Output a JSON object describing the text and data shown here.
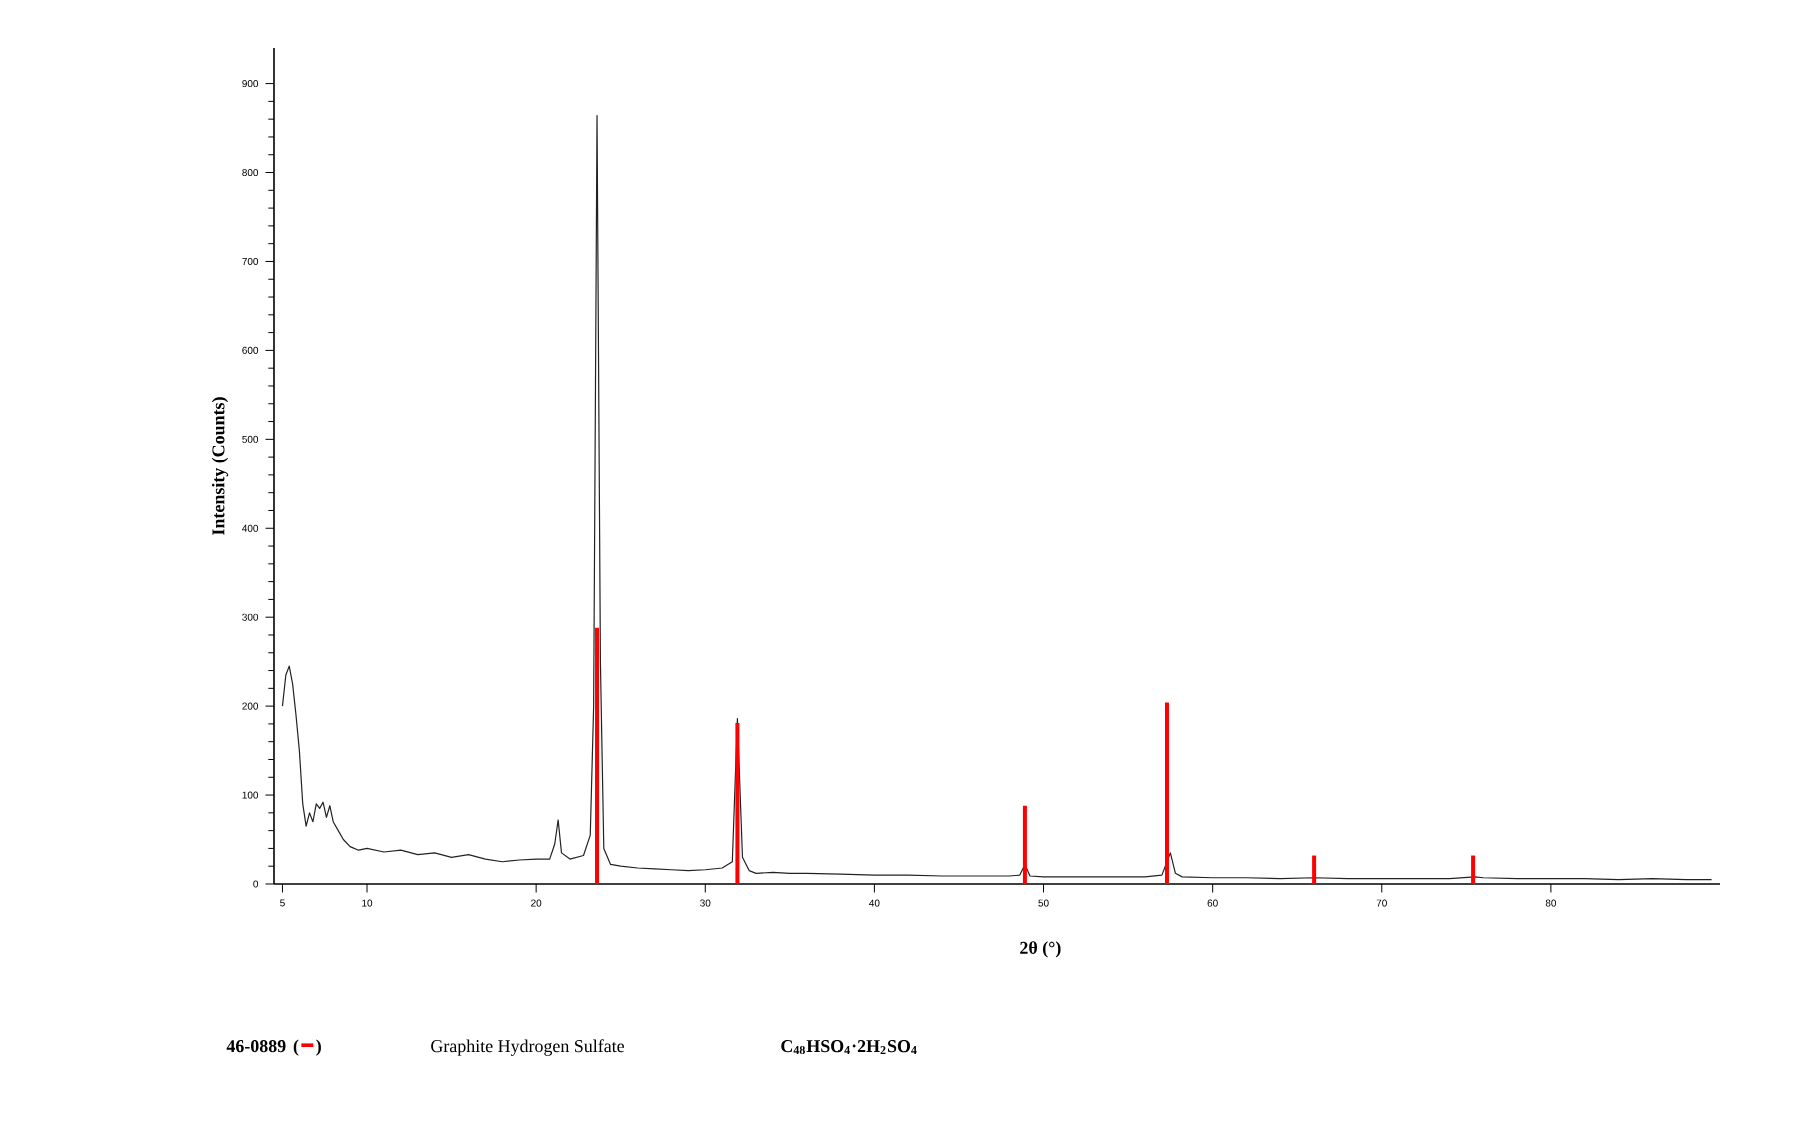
{
  "chart_data": {
    "type": "line",
    "xlabel": "2θ (°)",
    "ylabel": "Intensity (Counts)",
    "xlim": [
      4.5,
      90
    ],
    "ylim": [
      0,
      940
    ],
    "xticks": [
      5,
      10,
      20,
      30,
      40,
      50,
      60,
      70,
      80
    ],
    "yticks": [
      0,
      100,
      200,
      300,
      400,
      500,
      600,
      700,
      800,
      900
    ],
    "grid": false,
    "legend": "bottom",
    "marker": "none",
    "series": [
      {
        "color": "#222222",
        "x": [
          5.0,
          5.2,
          5.4,
          5.6,
          5.8,
          6.0,
          6.2,
          6.4,
          6.6,
          6.8,
          7.0,
          7.2,
          7.4,
          7.6,
          7.8,
          8.0,
          8.3,
          8.6,
          9.0,
          9.5,
          10.0,
          11.0,
          12.0,
          13.0,
          14.0,
          15.0,
          16.0,
          17.0,
          18.0,
          19.0,
          20.0,
          20.8,
          21.1,
          21.3,
          21.5,
          22.0,
          22.8,
          23.2,
          23.4,
          23.6,
          23.8,
          24.0,
          24.4,
          25.0,
          26.0,
          27.0,
          28.0,
          29.0,
          30.0,
          31.0,
          31.6,
          31.9,
          32.2,
          32.6,
          33.0,
          34.0,
          35.0,
          36.0,
          38.0,
          40.0,
          42.0,
          44.0,
          46.0,
          48.0,
          48.6,
          48.9,
          49.2,
          50.0,
          52.0,
          54.0,
          56.0,
          57.0,
          57.5,
          57.8,
          58.2,
          60.0,
          62.0,
          64.0,
          66.0,
          68.0,
          70.0,
          72.0,
          74.0,
          75.5,
          76.0,
          78.0,
          80.0,
          82.0,
          84.0,
          86.0,
          88.0,
          89.5
        ],
        "values": [
          200,
          235,
          245,
          225,
          190,
          150,
          90,
          65,
          80,
          70,
          90,
          85,
          92,
          75,
          88,
          70,
          60,
          50,
          42,
          38,
          40,
          36,
          38,
          33,
          35,
          30,
          33,
          28,
          25,
          27,
          28,
          28,
          45,
          72,
          35,
          28,
          32,
          55,
          200,
          864,
          250,
          40,
          22,
          20,
          18,
          17,
          16,
          15,
          16,
          18,
          25,
          186,
          30,
          15,
          12,
          13,
          12,
          12,
          11,
          10,
          10,
          9,
          9,
          9,
          10,
          22,
          9,
          8,
          8,
          8,
          8,
          10,
          35,
          12,
          8,
          7,
          7,
          6,
          7,
          6,
          6,
          6,
          6,
          8,
          7,
          6,
          6,
          6,
          5,
          6,
          5,
          5
        ]
      },
      {
        "type": "bar",
        "name": "46-0889",
        "color": "#ff0000",
        "x": [
          23.6,
          31.9,
          48.9,
          57.3,
          66.0,
          75.4
        ],
        "values": [
          288,
          181,
          88,
          204,
          32,
          32
        ]
      }
    ],
    "annotations": [
      "Graphite Hydrogen Sulfate",
      "C$_{48}$HSO$_{4}$·2H$_{2}$SO$_{4}$",
      "(",
      ")"
    ]
  }
}
